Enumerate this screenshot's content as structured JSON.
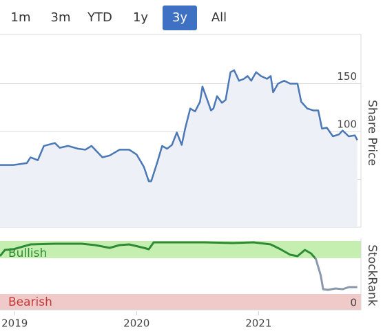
{
  "range_buttons": {
    "options": [
      "1m",
      "3m",
      "YTD",
      "1y",
      "3y",
      "All"
    ],
    "selected": 4
  },
  "chart_data": [
    {
      "type": "line",
      "y_label": "Share Price",
      "color": "#4a77b6",
      "area": true,
      "grid": true,
      "xlim": [
        2018.88,
        2021.84
      ],
      "ylim": [
        0,
        200
      ],
      "yticks": [
        0,
        50,
        100,
        150
      ],
      "x": [
        2018.88,
        2018.99,
        2019.1,
        2019.13,
        2019.19,
        2019.24,
        2019.33,
        2019.37,
        2019.44,
        2019.52,
        2019.58,
        2019.63,
        2019.72,
        2019.78,
        2019.86,
        2019.94,
        2020.0,
        2020.06,
        2020.1,
        2020.12,
        2020.17,
        2020.21,
        2020.25,
        2020.29,
        2020.33,
        2020.37,
        2020.4,
        2020.44,
        2020.48,
        2020.52,
        2020.54,
        2020.58,
        2020.61,
        2020.63,
        2020.66,
        2020.7,
        2020.73,
        2020.77,
        2020.8,
        2020.84,
        2020.88,
        2020.91,
        2020.94,
        2020.98,
        2021.02,
        2021.07,
        2021.1,
        2021.12,
        2021.16,
        2021.21,
        2021.26,
        2021.32,
        2021.35,
        2021.4,
        2021.45,
        2021.49,
        2021.52,
        2021.56,
        2021.61,
        2021.66,
        2021.69,
        2021.74,
        2021.79,
        2021.81
      ],
      "values": [
        65,
        65,
        67,
        73,
        70,
        85,
        88,
        83,
        85,
        82,
        81,
        85,
        73,
        75,
        81,
        81,
        76,
        63,
        48,
        48,
        68,
        85,
        82,
        86,
        99,
        86,
        104,
        124,
        121,
        131,
        147,
        133,
        122,
        124,
        137,
        130,
        133,
        162,
        164,
        153,
        155,
        158,
        153,
        162,
        158,
        155,
        158,
        141,
        150,
        153,
        150,
        150,
        131,
        124,
        122,
        122,
        103,
        104,
        95,
        97,
        101,
        95,
        96,
        91
      ]
    },
    {
      "type": "line",
      "y_label": "StockRank",
      "color": "#2e8b34",
      "fade_color": "#8a98ad",
      "xlim": [
        2018.88,
        2021.84
      ],
      "ylim": [
        0,
        100
      ],
      "yticks": [
        0
      ],
      "xticks": [
        2019,
        2020,
        2021
      ],
      "bands": [
        {
          "label": "Bullish",
          "from": 75,
          "to": 100,
          "color": "#c5efb1",
          "text_color": "#2e8b34"
        },
        {
          "label": "Bearish",
          "from": 0,
          "to": 23,
          "color": "#f0c9c9",
          "text_color": "#c23a3a"
        }
      ],
      "x": [
        2018.88,
        2018.92,
        2018.99,
        2019.13,
        2019.33,
        2019.55,
        2019.66,
        2019.78,
        2019.86,
        2019.94,
        2020.06,
        2020.1,
        2020.14,
        2020.34,
        2020.56,
        2020.79,
        2020.96,
        2021.1,
        2021.18,
        2021.26,
        2021.32,
        2021.38,
        2021.43,
        2021.47,
        2021.51,
        2021.53,
        2021.57,
        2021.63,
        2021.69,
        2021.74,
        2021.81
      ],
      "values": [
        78,
        87,
        88,
        95,
        96,
        96,
        94,
        90,
        94,
        95,
        90,
        88,
        98,
        98,
        98,
        97,
        98,
        95,
        88,
        80,
        78,
        87,
        82,
        74,
        50,
        30,
        29,
        31,
        30,
        33,
        33
      ]
    }
  ]
}
